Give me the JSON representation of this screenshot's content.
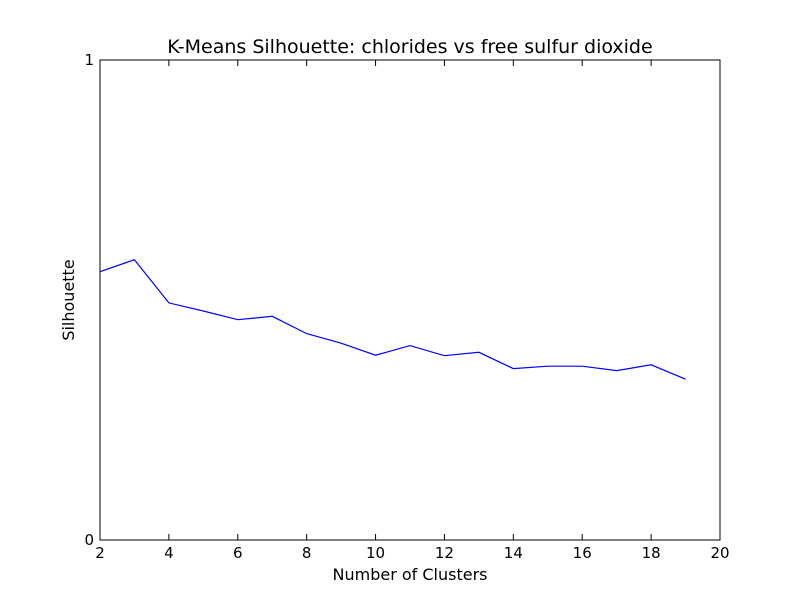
{
  "chart_data": {
    "type": "line",
    "title": "K-Means Silhouette: chlorides vs free sulfur dioxide",
    "xlabel": "Number of Clusters",
    "ylabel": "Silhouette",
    "xlim": [
      2,
      20
    ],
    "ylim": [
      0,
      1
    ],
    "xticks": [
      2,
      4,
      6,
      8,
      10,
      12,
      14,
      16,
      18,
      20
    ],
    "yticks": [
      0,
      1
    ],
    "grid": false,
    "series": [
      {
        "color": "#0000ff",
        "x": [
          2,
          3,
          4,
          5,
          6,
          7,
          8,
          9,
          10,
          11,
          12,
          13,
          14,
          15,
          16,
          17,
          18,
          19
        ],
        "y": [
          0.559,
          0.584,
          0.494,
          0.477,
          0.459,
          0.466,
          0.43,
          0.41,
          0.385,
          0.405,
          0.384,
          0.391,
          0.357,
          0.362,
          0.362,
          0.353,
          0.365,
          0.335
        ]
      }
    ]
  }
}
